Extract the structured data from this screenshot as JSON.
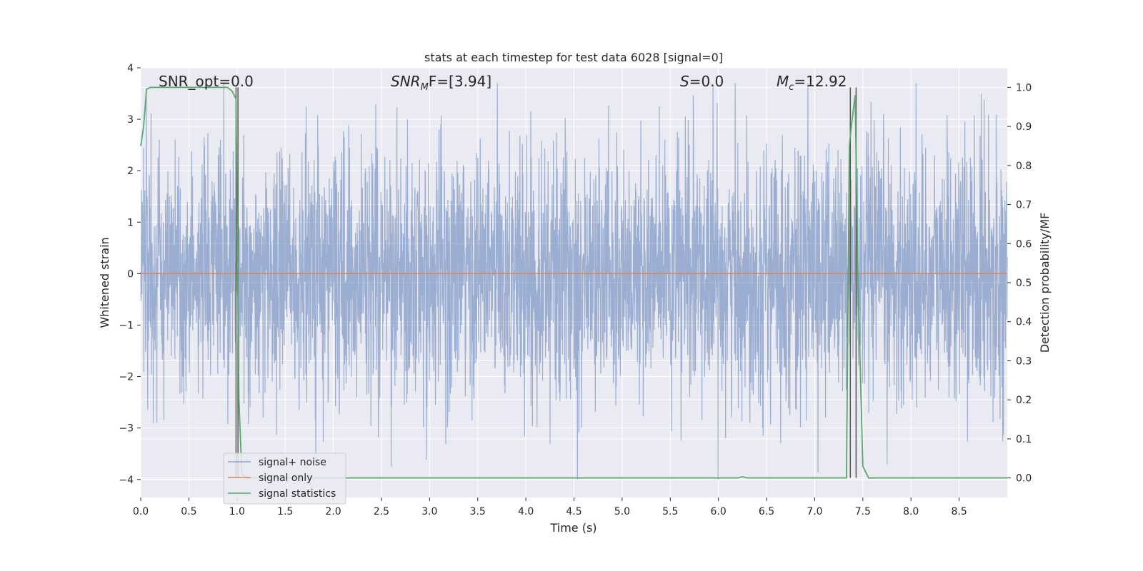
{
  "chart_data": {
    "type": "line",
    "title": "stats at each timestep for test data 6028 [signal=0]",
    "xlabel": "Time (s)",
    "ylabel": "Whitened strain",
    "y2label": "Detection probability/MF",
    "xlim": [
      0.0,
      9.0
    ],
    "ylim": [
      -4.35,
      4.0
    ],
    "y2lim": [
      -0.05,
      1.05
    ],
    "xticks": [
      "0.0",
      "0.5",
      "1.0",
      "1.5",
      "2.0",
      "2.5",
      "3.0",
      "3.5",
      "4.0",
      "4.5",
      "5.0",
      "5.5",
      "6.0",
      "6.5",
      "7.0",
      "7.5",
      "8.0",
      "8.5"
    ],
    "yticks": [
      "4",
      "3",
      "2",
      "1",
      "0",
      "−1",
      "−2",
      "−3",
      "−4"
    ],
    "y2ticks": [
      "1.0",
      "0.9",
      "0.8",
      "0.7",
      "0.6",
      "0.5",
      "0.4",
      "0.3",
      "0.2",
      "0.1",
      "0.0"
    ],
    "grid": true,
    "legend_position": "lower-left",
    "colors": {
      "background": "#eaeaf2",
      "grid": "#ffffff",
      "noise": "#4c72b0",
      "signal": "#dd8452",
      "statistics": "#55a868",
      "markers": "#555555"
    },
    "annotations": {
      "snr_opt": "SNR_opt=0.0",
      "snr_mf_sym": "SNR",
      "snr_mf_sub": "M",
      "snr_mf_rest": "F=[3.94]",
      "s_sym": "S",
      "s_rest": "=0.0",
      "mc_sym": "M",
      "mc_sub": "c",
      "mc_rest": "=12.92"
    },
    "series": [
      {
        "name": "signal+ noise",
        "description_type": "noise",
        "envelope_y": [
          -4.0,
          3.7
        ],
        "typical_abs": 1.5
      },
      {
        "name": "signal only",
        "x": [
          0.0,
          9.0
        ],
        "y": [
          0.0,
          0.0
        ]
      },
      {
        "name": "signal statistics",
        "axis": "right",
        "x": [
          0.0,
          0.03,
          0.06,
          0.1,
          0.15,
          0.2,
          0.3,
          0.5,
          0.7,
          0.9,
          0.95,
          0.99,
          1.0,
          1.02,
          1.05,
          1.1,
          1.2,
          1.5,
          2.0,
          3.0,
          4.0,
          5.0,
          6.0,
          6.2,
          6.25,
          6.3,
          7.0,
          7.3,
          7.33,
          7.36,
          7.38,
          7.42,
          7.45,
          7.5,
          7.56,
          7.6,
          8.0,
          9.0
        ],
        "y": [
          0.85,
          0.9,
          0.995,
          1.0,
          1.0,
          1.0,
          1.0,
          1.0,
          1.0,
          1.0,
          0.99,
          0.97,
          0.7,
          0.2,
          0.01,
          0.0,
          0.0,
          0.0,
          0.0,
          0.0,
          0.0,
          0.0,
          0.0,
          0.0,
          0.003,
          0.0,
          0.0,
          0.0,
          0.0,
          0.85,
          0.9,
          0.98,
          0.5,
          0.03,
          0.0,
          0.0,
          0.0,
          0.0
        ]
      }
    ],
    "marker_lines_x": [
      0.99,
      1.01,
      7.37,
      7.43
    ],
    "marker_lines_y2": [
      0.0,
      1.0
    ]
  }
}
